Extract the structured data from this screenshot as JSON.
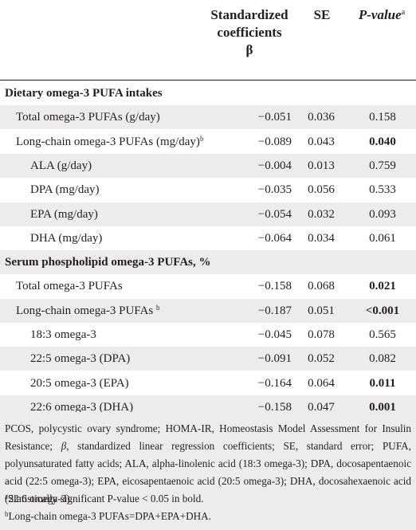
{
  "header": {
    "coef_line1": "Standardized",
    "coef_line2": "coefficients",
    "coef_line3": "β",
    "se": "SE",
    "pvalue": "P-value",
    "pvalue_sup": "a"
  },
  "rows": [
    {
      "label": "Dietary omega-3 PUFA intakes",
      "section": true
    },
    {
      "label": "Total omega-3 PUFAs (g/day)",
      "coef": "−0.051",
      "se": "0.036",
      "p": "0.158",
      "bold": false
    },
    {
      "label": "Long-chain omega-3 PUFAs (mg/day)",
      "sup": "b",
      "coef": "−0.089",
      "se": "0.043",
      "p": "0.040",
      "bold": true
    },
    {
      "label": "ALA (g/day)",
      "coef": "−0.004",
      "se": "0.013",
      "p": "0.759",
      "bold": false
    },
    {
      "label": "DPA (mg/day)",
      "coef": "−0.035",
      "se": "0.056",
      "p": "0.533",
      "bold": false
    },
    {
      "label": "EPA (mg/day)",
      "coef": "−0.054",
      "se": "0.032",
      "p": "0.093",
      "bold": false
    },
    {
      "label": "DHA (mg/day)",
      "coef": "−0.064",
      "se": "0.034",
      "p": "0.061",
      "bold": false
    },
    {
      "label": "Serum phospholipid omega-3 PUFAs, %",
      "section": true
    },
    {
      "label": "Total omega-3 PUFAs",
      "coef": "−0.158",
      "se": "0.068",
      "p": "0.021",
      "bold": true
    },
    {
      "label": "Long-chain omega-3 PUFAs ",
      "sup": "b",
      "coef": "−0.187",
      "se": "0.051",
      "p": "<0.001",
      "bold": true
    },
    {
      "label": "18:3 omega-3",
      "coef": "−0.045",
      "se": "0.078",
      "p": "0.565",
      "bold": false
    },
    {
      "label": "22:5 omega-3 (DPA)",
      "coef": "−0.091",
      "se": "0.052",
      "p": "0.082",
      "bold": false
    },
    {
      "label": "20:5 omega-3 (EPA)",
      "coef": "−0.164",
      "se": "0.064",
      "p": "0.011",
      "bold": true
    },
    {
      "label": "22:6 omega-3 (DHA)",
      "coef": "−0.158",
      "se": "0.047",
      "p": "0.001",
      "bold": true
    }
  ],
  "footnotes": {
    "abbrev_a": "PCOS, polycystic ovary syndrome; HOMA-IR, Homeostasis Model Assessment for Insulin Resistance; ",
    "abbrev_beta": "β",
    "abbrev_b": ", standardized linear regression coefficients; SE, standard error; PUFA, polyunsaturated fatty acids; ALA, alpha-linolenic acid (18:3 omega-3); DPA, docosapentaenoic acid (22:5 omega-3); EPA, eicosapentaenoic acid (20:5 omega-3); DHA, docosahexaenoic acid (22:6 omega-3).",
    "note_a_mark": "a",
    "note_a": "Statistically significant P-value < 0.05 in bold.",
    "note_b_mark": "b",
    "note_b": "Long-chain omega-3 PUFAs=DPA+EPA+DHA."
  },
  "colors": {
    "shade": "#ececec",
    "text": "#231f20"
  }
}
